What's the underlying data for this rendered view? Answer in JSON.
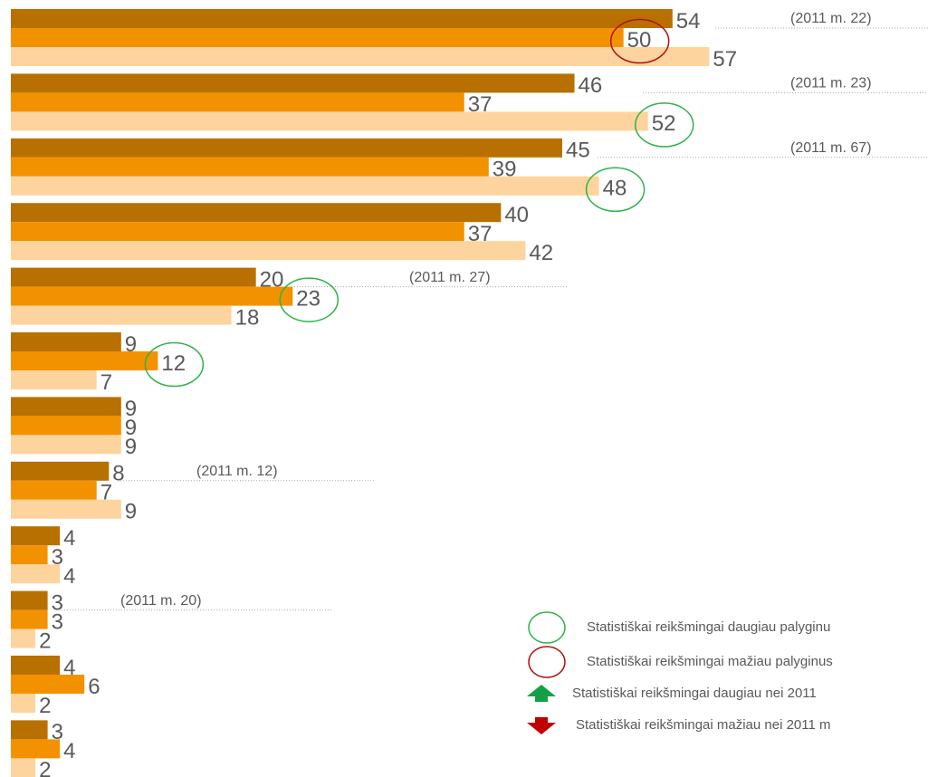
{
  "chart_data": {
    "type": "bar",
    "orientation": "horizontal",
    "categories": [
      null,
      null,
      null,
      null,
      null,
      null,
      null,
      null,
      null,
      null,
      null,
      null
    ],
    "series": [
      {
        "color": "#b87000",
        "values": [
          54,
          46,
          45,
          40,
          20,
          9,
          9,
          8,
          4,
          3,
          4,
          3
        ]
      },
      {
        "color": "#f39200",
        "values": [
          50,
          37,
          39,
          37,
          23,
          12,
          9,
          7,
          3,
          3,
          6,
          4
        ]
      },
      {
        "color": "#fdd49e",
        "values": [
          57,
          52,
          48,
          42,
          18,
          7,
          9,
          9,
          4,
          2,
          2,
          2
        ]
      }
    ],
    "xlim": [
      0,
      75
    ],
    "annotations": [
      "(2011 m. 22)",
      "(2011 m. 23)",
      "(2011 m. 67)",
      "(2011 m. 27)",
      "(2011 m. 12)",
      "(2011 m. 20)"
    ],
    "legend": [
      "Statistiškai reikšmingai daugiau palyginu",
      "Statistiškai reikšmingai mažiau palyginus",
      "Statistiškai reikšmingai daugiau nei 2011",
      "Statistiškai reikšmingai mažiau nei 2011 m"
    ]
  }
}
